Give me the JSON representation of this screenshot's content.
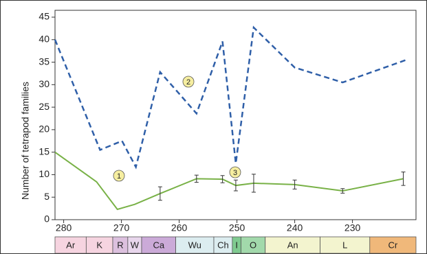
{
  "chart_data": {
    "type": "line",
    "y_label": "Number of tetrapod families",
    "xlim": [
      281.5,
      219
    ],
    "ylim": [
      0,
      45
    ],
    "xticks": [
      280,
      270,
      260,
      250,
      240,
      230
    ],
    "yticks": [
      0,
      5,
      10,
      15,
      20,
      25,
      30,
      35,
      40,
      45
    ],
    "series": [
      {
        "color": "#2f5fa8",
        "dashed": true,
        "x": [
          281.5,
          273.7,
          269.9,
          267.5,
          263.3,
          257,
          252.5,
          250.2,
          247.1,
          240,
          231.7,
          220.7
        ],
        "values": [
          40,
          15.5,
          17.5,
          11.7,
          32.8,
          23.6,
          39.6,
          12.5,
          42.7,
          33.8,
          30.5,
          35.5
        ]
      },
      {
        "color": "#78b146",
        "dashed": false,
        "x": [
          281.5,
          274.3,
          270.7,
          267.7,
          263.3,
          257,
          252.5,
          250.2,
          247.1,
          240,
          231.7,
          221.2
        ],
        "values": [
          15,
          8.4,
          2.3,
          3.4,
          5.8,
          9.1,
          9,
          7.6,
          8.1,
          7.8,
          6.4,
          9.1
        ],
        "errors": [
          null,
          null,
          null,
          null,
          1.5,
          0.8,
          0.8,
          1.2,
          2,
          1,
          0.5,
          1.5
        ]
      }
    ],
    "annotations": [
      "1",
      "2",
      "3"
    ],
    "bands": [
      {
        "label": "Ar",
        "start": 281.5,
        "end": 276.1,
        "color": "#f6d4e0"
      },
      {
        "label": "K",
        "start": 276.1,
        "end": 271.5,
        "color": "#f6d4e0"
      },
      {
        "label": "R",
        "start": 271.5,
        "end": 268.9,
        "color": "#dcc0de"
      },
      {
        "label": "W",
        "start": 268.9,
        "end": 266.5,
        "color": "#e8d6ec"
      },
      {
        "label": "Ca",
        "start": 266.5,
        "end": 260.6,
        "color": "#cbaad8"
      },
      {
        "label": "Wu",
        "start": 260.6,
        "end": 254,
        "color": "#dcedf0"
      },
      {
        "label": "Ch",
        "start": 254,
        "end": 250.8,
        "color": "#dcedf0"
      },
      {
        "label": "I",
        "start": 250.8,
        "end": 249.3,
        "color": "#7fca90"
      },
      {
        "label": "O",
        "start": 249.3,
        "end": 245.1,
        "color": "#a2d9ab"
      },
      {
        "label": "An",
        "start": 245.1,
        "end": 235.6,
        "color": "#f3f4cf"
      },
      {
        "label": "L",
        "start": 235.6,
        "end": 227,
        "color": "#f3f4cf"
      },
      {
        "label": "Cr",
        "start": 227,
        "end": 219,
        "color": "#f0b87a"
      }
    ]
  }
}
